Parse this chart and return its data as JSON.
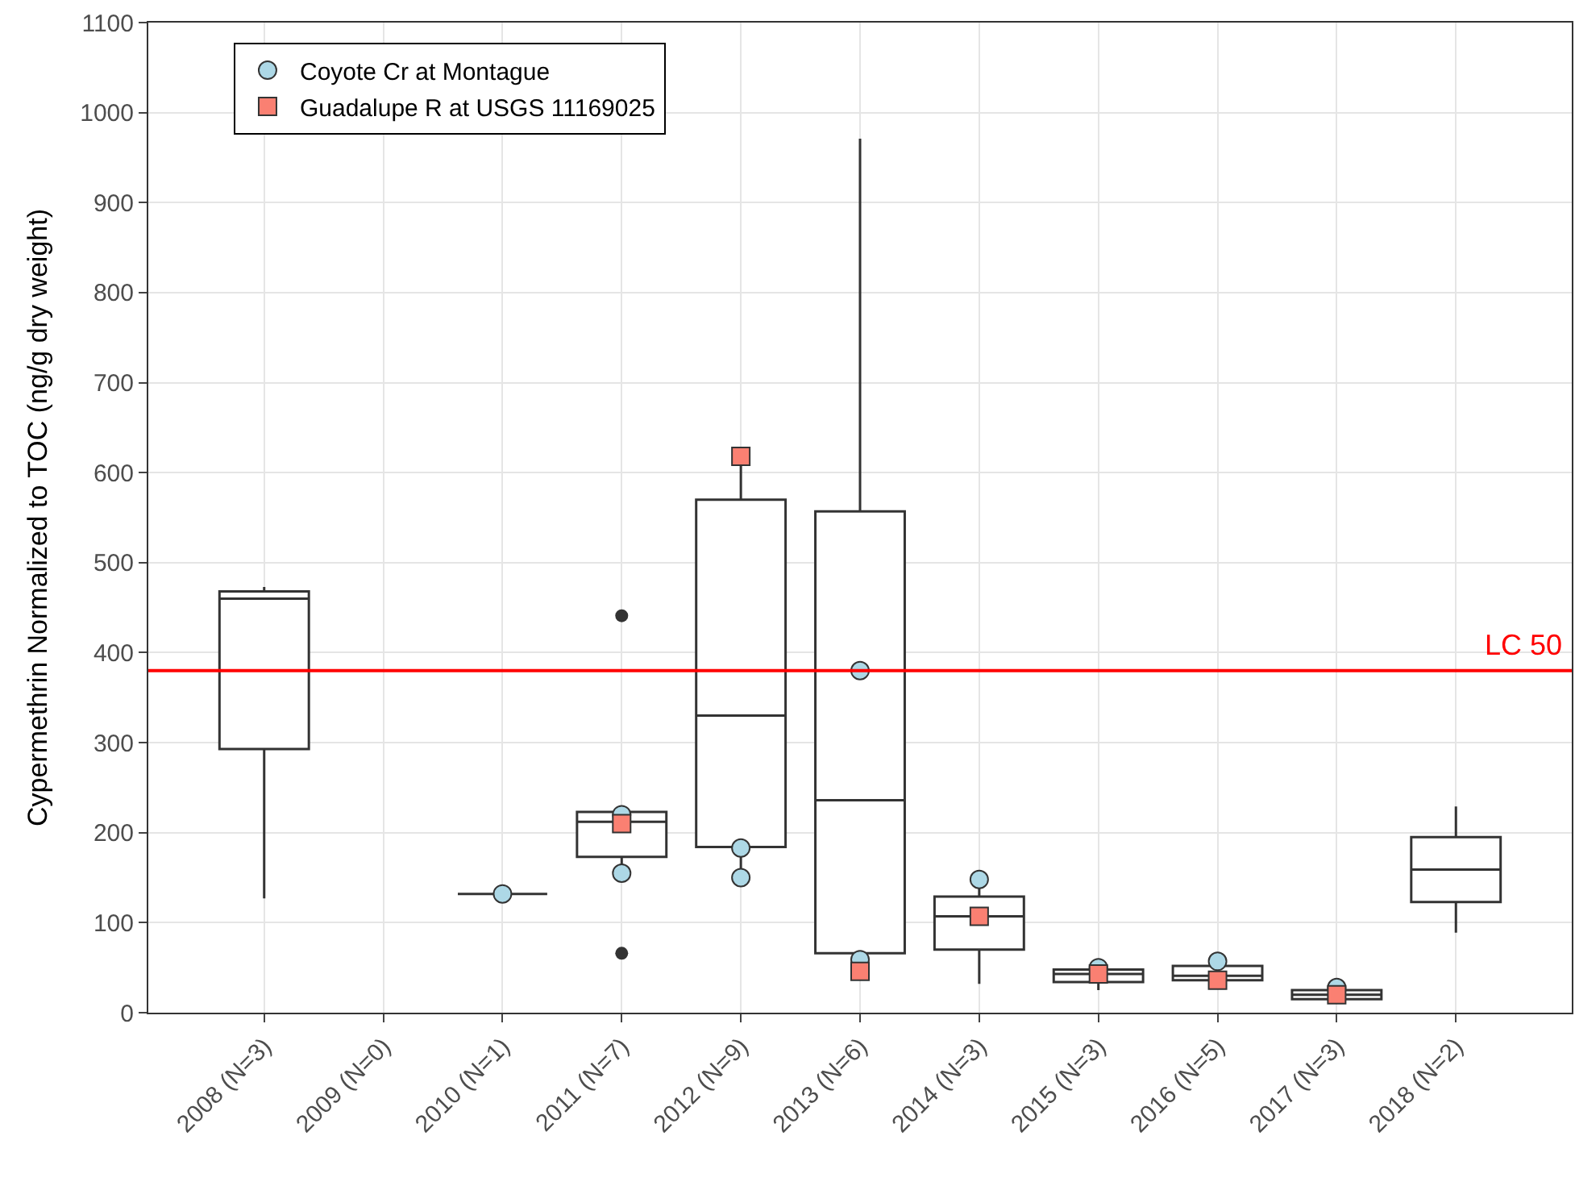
{
  "chart_data": {
    "type": "box",
    "categories": [
      "2008 (N=3)",
      "2009 (N=0)",
      "2010 (N=1)",
      "2011 (N=7)",
      "2012 (N=9)",
      "2013 (N=6)",
      "2014 (N=3)",
      "2015 (N=3)",
      "2016 (N=5)",
      "2017 (N=3)",
      "2018 (N=2)"
    ],
    "ylabel": "Cypermethrin Normalized to TOC (ng/g dry weight)",
    "ylim": [
      0,
      1100
    ],
    "yticks": [
      0,
      100,
      200,
      300,
      400,
      500,
      600,
      700,
      800,
      900,
      1000,
      1100
    ],
    "grid": true,
    "legend": "top left",
    "series": [
      {
        "type": "box",
        "color": "#333333",
        "boxes": [
          {
            "low": 127,
            "q1": 293,
            "median": 460,
            "q3": 468,
            "high": 473
          },
          null,
          {
            "low": 132,
            "q1": 132,
            "median": 132,
            "q3": 132,
            "high": 132
          },
          {
            "low": 157,
            "q1": 173,
            "median": 212,
            "q3": 223,
            "high": 223,
            "outliers": [
              441,
              66
            ]
          },
          {
            "low": 150,
            "q1": 184,
            "median": 330,
            "q3": 570,
            "high": 614
          },
          {
            "low": 46,
            "q1": 66,
            "median": 236,
            "q3": 557,
            "high": 971
          },
          {
            "low": 32,
            "q1": 70,
            "median": 107,
            "q3": 129,
            "high": 148
          },
          {
            "low": 25,
            "q1": 34,
            "median": 43,
            "q3": 48,
            "high": 50
          },
          {
            "low": 36,
            "q1": 36,
            "median": 41,
            "q3": 52,
            "high": 57
          },
          {
            "low": 12,
            "q1": 15,
            "median": 20,
            "q3": 25,
            "high": 28
          },
          {
            "low": 89,
            "q1": 123,
            "median": 159,
            "q3": 195,
            "high": 229
          }
        ]
      },
      {
        "type": "scatter",
        "name": "Coyote Cr at Montague",
        "color": "#add8e6",
        "marker": "circle",
        "x": [
          "2010 (N=1)",
          "2011 (N=7)",
          "2011 (N=7)",
          "2012 (N=9)",
          "2012 (N=9)",
          "2013 (N=6)",
          "2013 (N=6)",
          "2014 (N=3)",
          "2015 (N=3)",
          "2016 (N=5)",
          "2017 (N=3)"
        ],
        "values": [
          132,
          220,
          155,
          183,
          150,
          380,
          59,
          148,
          50,
          57,
          28
        ]
      },
      {
        "type": "scatter",
        "name": "Guadalupe R at USGS 11169025",
        "color": "#fa8072",
        "marker": "square",
        "x": [
          "2011 (N=7)",
          "2012 (N=9)",
          "2013 (N=6)",
          "2014 (N=3)",
          "2015 (N=3)",
          "2016 (N=5)",
          "2017 (N=3)"
        ],
        "values": [
          210,
          618,
          46,
          107,
          43,
          36,
          20
        ]
      }
    ],
    "ref_lines": [
      {
        "axis": "y",
        "value": 380,
        "label": "LC 50",
        "color": "#ff0000"
      }
    ]
  }
}
